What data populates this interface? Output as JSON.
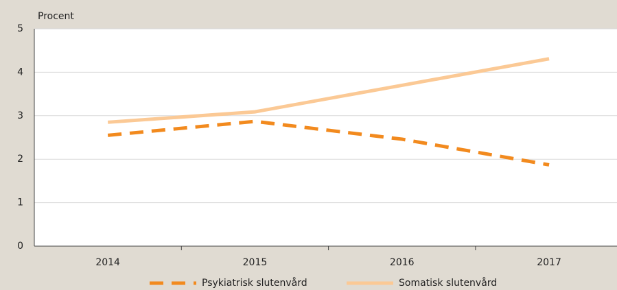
{
  "chart_data": {
    "type": "line",
    "y_label": "Procent",
    "categories": [
      "2014",
      "2015",
      "2016",
      "2017"
    ],
    "series": [
      {
        "name": "Psykiatrisk slutenvård",
        "color": "#f28a1e",
        "dashed": true,
        "values": [
          2.55,
          2.87,
          2.46,
          1.87
        ]
      },
      {
        "name": "Somatisk slutenvård",
        "color": "#fbc995",
        "dashed": false,
        "values": [
          2.85,
          3.09,
          3.7,
          4.31
        ]
      }
    ],
    "ylim": [
      0,
      5
    ],
    "yticks": [
      0,
      1,
      2,
      3,
      4,
      5
    ],
    "grid": true
  }
}
